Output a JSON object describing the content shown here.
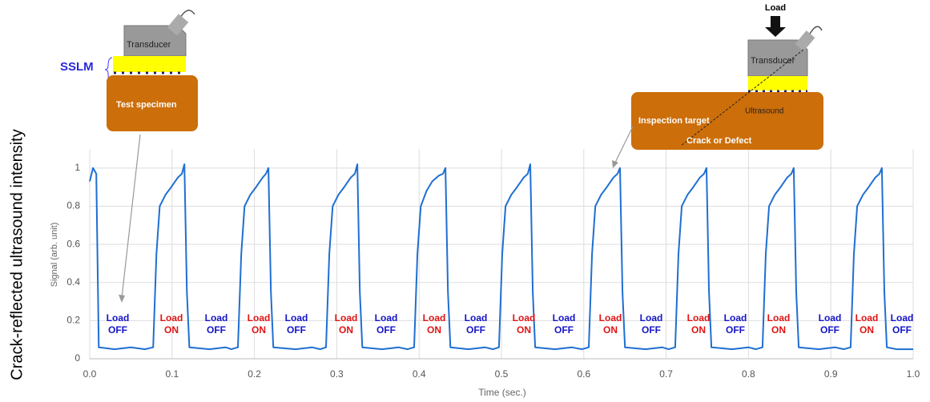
{
  "chart_data": {
    "type": "line",
    "y_label": "Crack-reflected ultrasound intensity",
    "y_sublabel": "Signal (arb. unit)",
    "x_label": "Time (sec.)",
    "xlim": [
      0,
      1
    ],
    "ylim": [
      0,
      1.1
    ],
    "xticks": [
      {
        "value": 0,
        "label": "0.0"
      },
      0.1,
      0.2,
      0.3,
      0.4,
      0.5,
      0.6,
      0.7,
      0.8,
      0.9,
      {
        "value": 1,
        "label": "1.0"
      }
    ],
    "yticks": [
      0,
      0.2,
      0.4,
      0.6,
      0.8,
      1
    ],
    "grid": true,
    "color": "#1f6fd1",
    "x": [
      0,
      0.004,
      0.008,
      0.011,
      0.03,
      0.05,
      0.067,
      0.077,
      0.081,
      0.085,
      0.092,
      0.099,
      0.107,
      0.112,
      0.115,
      0.118,
      0.121,
      0.145,
      0.165,
      0.172,
      0.18,
      0.184,
      0.188,
      0.195,
      0.202,
      0.21,
      0.214,
      0.217,
      0.22,
      0.223,
      0.25,
      0.27,
      0.28,
      0.287,
      0.291,
      0.295,
      0.302,
      0.309,
      0.317,
      0.322,
      0.325,
      0.328,
      0.331,
      0.355,
      0.375,
      0.386,
      0.394,
      0.398,
      0.402,
      0.409,
      0.416,
      0.424,
      0.429,
      0.432,
      0.435,
      0.438,
      0.46,
      0.48,
      0.49,
      0.497,
      0.501,
      0.505,
      0.512,
      0.519,
      0.527,
      0.532,
      0.535,
      0.538,
      0.541,
      0.565,
      0.585,
      0.598,
      0.606,
      0.61,
      0.614,
      0.621,
      0.628,
      0.636,
      0.641,
      0.644,
      0.647,
      0.65,
      0.675,
      0.695,
      0.703,
      0.711,
      0.715,
      0.719,
      0.726,
      0.733,
      0.741,
      0.746,
      0.749,
      0.752,
      0.755,
      0.78,
      0.8,
      0.809,
      0.817,
      0.821,
      0.825,
      0.832,
      0.839,
      0.847,
      0.852,
      0.855,
      0.858,
      0.861,
      0.885,
      0.905,
      0.916,
      0.924,
      0.928,
      0.932,
      0.939,
      0.946,
      0.954,
      0.959,
      0.962,
      0.965,
      0.968,
      0.98,
      1.0
    ],
    "values": [
      0.93,
      1.0,
      0.97,
      0.06,
      0.05,
      0.06,
      0.05,
      0.06,
      0.55,
      0.8,
      0.86,
      0.9,
      0.95,
      0.97,
      1.02,
      0.35,
      0.06,
      0.05,
      0.06,
      0.05,
      0.06,
      0.55,
      0.8,
      0.86,
      0.9,
      0.95,
      0.97,
      1.0,
      0.35,
      0.06,
      0.05,
      0.06,
      0.05,
      0.06,
      0.55,
      0.8,
      0.86,
      0.9,
      0.95,
      0.97,
      1.02,
      0.35,
      0.06,
      0.05,
      0.06,
      0.05,
      0.06,
      0.55,
      0.8,
      0.88,
      0.93,
      0.96,
      0.97,
      1.0,
      0.35,
      0.06,
      0.05,
      0.06,
      0.05,
      0.06,
      0.55,
      0.8,
      0.86,
      0.9,
      0.95,
      0.97,
      1.02,
      0.35,
      0.06,
      0.05,
      0.06,
      0.05,
      0.06,
      0.55,
      0.8,
      0.86,
      0.9,
      0.95,
      0.97,
      1.0,
      0.35,
      0.06,
      0.05,
      0.06,
      0.05,
      0.06,
      0.55,
      0.8,
      0.86,
      0.9,
      0.95,
      0.97,
      1.0,
      0.35,
      0.06,
      0.05,
      0.06,
      0.05,
      0.06,
      0.55,
      0.8,
      0.86,
      0.9,
      0.95,
      0.97,
      1.0,
      0.35,
      0.06,
      0.05,
      0.06,
      0.05,
      0.06,
      0.55,
      0.8,
      0.86,
      0.9,
      0.95,
      0.97,
      1.0,
      0.35,
      0.06,
      0.05,
      0.05
    ],
    "load_labels": [
      {
        "line1": "Load",
        "line2": "OFF"
      },
      {
        "line1": "Load",
        "line2": "ON"
      },
      {
        "line1": "Load",
        "line2": "OFF"
      },
      {
        "line1": "Load",
        "line2": "ON"
      },
      {
        "line1": "Load",
        "line2": "OFF"
      },
      {
        "line1": "Load",
        "line2": "ON"
      },
      {
        "line1": "Load",
        "line2": "OFF"
      },
      {
        "line1": "Load",
        "line2": "ON"
      },
      {
        "line1": "Load",
        "line2": "OFF"
      },
      {
        "line1": "Load",
        "line2": "ON"
      },
      {
        "line1": "Load",
        "line2": "OFF"
      },
      {
        "line1": "Load",
        "line2": "ON"
      },
      {
        "line1": "Load",
        "line2": "OFF"
      },
      {
        "line1": "Load",
        "line2": "ON"
      },
      {
        "line1": "Load",
        "line2": "OFF"
      },
      {
        "line1": "Load",
        "line2": "ON"
      },
      {
        "line1": "Load",
        "line2": "OFF"
      },
      {
        "line1": "Load",
        "line2": "ON"
      },
      {
        "line1": "Load",
        "line2": "OFF"
      }
    ],
    "diagram_left": {
      "transducer": "Transducer",
      "layer": "SSLM",
      "specimen": "Test specimen"
    },
    "diagram_right": {
      "load": "Load",
      "transducer": "Transducer",
      "wave": "Ultrasound",
      "target": "Inspection target",
      "defect": "Crack or  Defect"
    }
  }
}
